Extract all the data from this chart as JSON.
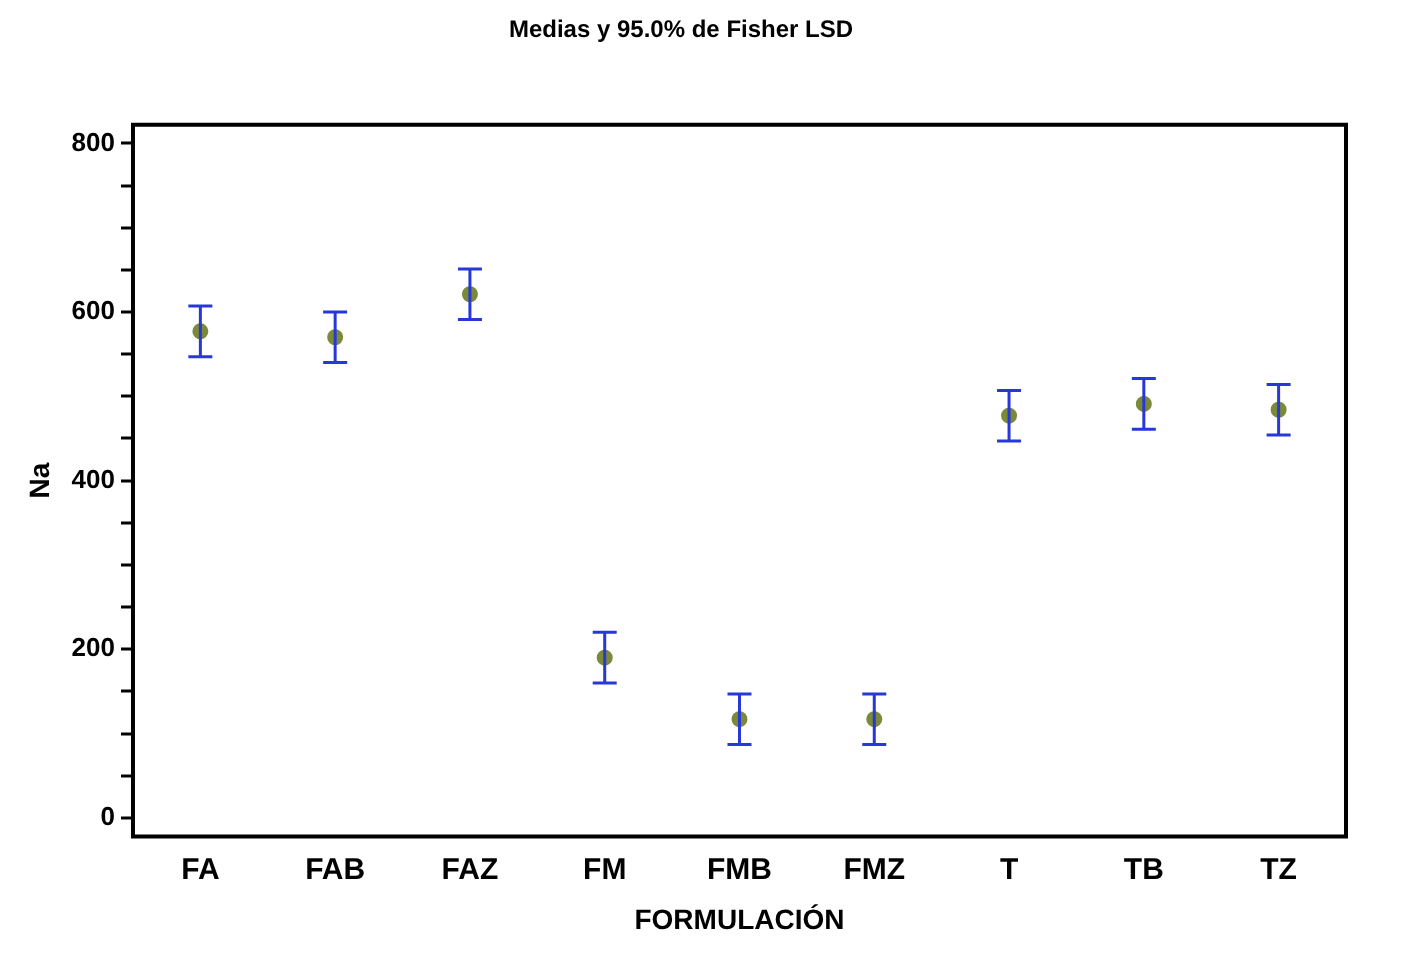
{
  "chart_data": {
    "type": "scatter",
    "title": "Medias y 95.0% de Fisher LSD",
    "xlabel": "FORMULACIÓN",
    "ylabel": "Na",
    "categories": [
      "FA",
      "FAB",
      "FAZ",
      "FM",
      "FMB",
      "FMZ",
      "T",
      "TB",
      "TZ"
    ],
    "series": [
      {
        "color": "#7a8a3a",
        "values": [
          577,
          570,
          621,
          190,
          117,
          117,
          477,
          491,
          484
        ],
        "errors": [
          30,
          30,
          30,
          30,
          30,
          30,
          30,
          30,
          30
        ]
      }
    ],
    "ylim": [
      -22,
      822
    ],
    "yticks": [
      0,
      {
        "value": 50,
        "label": null
      },
      {
        "value": 100,
        "label": null
      },
      {
        "value": 150,
        "label": null
      },
      200,
      {
        "value": 250,
        "label": null
      },
      {
        "value": 300,
        "label": null
      },
      {
        "value": 350,
        "label": null
      },
      400,
      {
        "value": 450,
        "label": null
      },
      {
        "value": 500,
        "label": null
      },
      {
        "value": 550,
        "label": null
      },
      600,
      {
        "value": 650,
        "label": null
      },
      {
        "value": 700,
        "label": null
      },
      {
        "value": 750,
        "label": null
      },
      800
    ],
    "marker": "circle",
    "grid": false,
    "legend": false
  }
}
